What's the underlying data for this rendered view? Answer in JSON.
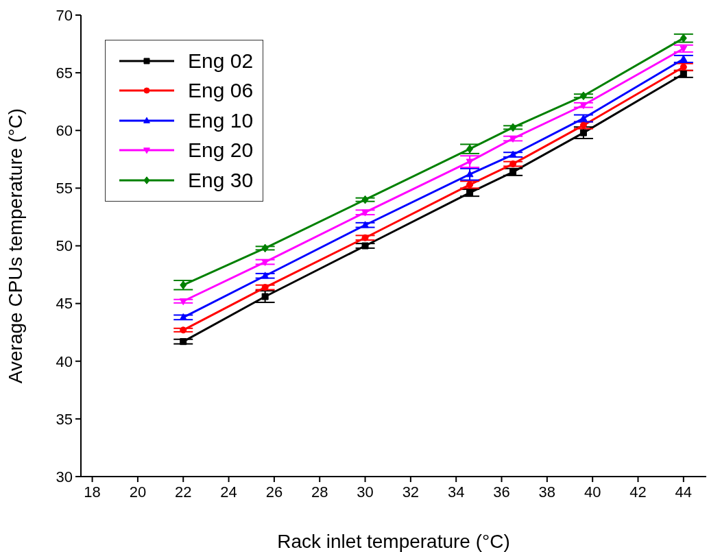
{
  "chart_data": {
    "type": "line",
    "xlabel": "Rack inlet temperature (°C)",
    "ylabel": "Average CPUs temperature (°C)",
    "x": [
      22,
      25.6,
      30,
      34.6,
      36.5,
      39.6,
      44
    ],
    "series": [
      {
        "name": "Eng 02",
        "color": "#000000",
        "marker": "square",
        "values": [
          41.7,
          45.6,
          50.0,
          54.6,
          56.4,
          59.8,
          64.9
        ],
        "errors": [
          0.2,
          0.5,
          0.2,
          0.3,
          0.3,
          0.5,
          0.3
        ]
      },
      {
        "name": "Eng 06",
        "color": "#ff0000",
        "marker": "circle",
        "values": [
          42.7,
          46.4,
          50.7,
          55.3,
          57.1,
          60.45,
          65.5
        ],
        "errors": [
          0.15,
          0.2,
          0.2,
          0.3,
          0.2,
          0.3,
          0.3
        ]
      },
      {
        "name": "Eng 10",
        "color": "#0000ff",
        "marker": "triangle",
        "values": [
          43.8,
          47.4,
          51.8,
          56.2,
          57.9,
          61.05,
          66.2
        ],
        "errors": [
          0.2,
          0.2,
          0.2,
          0.5,
          0.2,
          0.3,
          0.3
        ]
      },
      {
        "name": "Eng 20",
        "color": "#ff00ff",
        "marker": "triangle-down",
        "values": [
          45.2,
          48.6,
          52.9,
          57.3,
          59.3,
          62.2,
          67.1
        ],
        "errors": [
          0.15,
          0.2,
          0.2,
          0.5,
          0.2,
          0.2,
          0.3
        ]
      },
      {
        "name": "Eng 30",
        "color": "#008000",
        "marker": "diamond",
        "values": [
          46.6,
          49.8,
          54.0,
          58.4,
          60.26,
          63.0,
          68.0
        ],
        "errors": [
          0.4,
          0.15,
          0.15,
          0.4,
          0.15,
          0.15,
          0.35
        ]
      }
    ],
    "xlim": [
      17.5,
      45
    ],
    "xticks": [
      18,
      20,
      22,
      24,
      26,
      28,
      30,
      32,
      34,
      36,
      38,
      40,
      42,
      44
    ],
    "ylim": [
      30,
      70
    ],
    "yticks": [
      30,
      35,
      40,
      45,
      50,
      55,
      60,
      65,
      70
    ],
    "grid": false,
    "legend": "top left",
    "line_style": "solid"
  }
}
